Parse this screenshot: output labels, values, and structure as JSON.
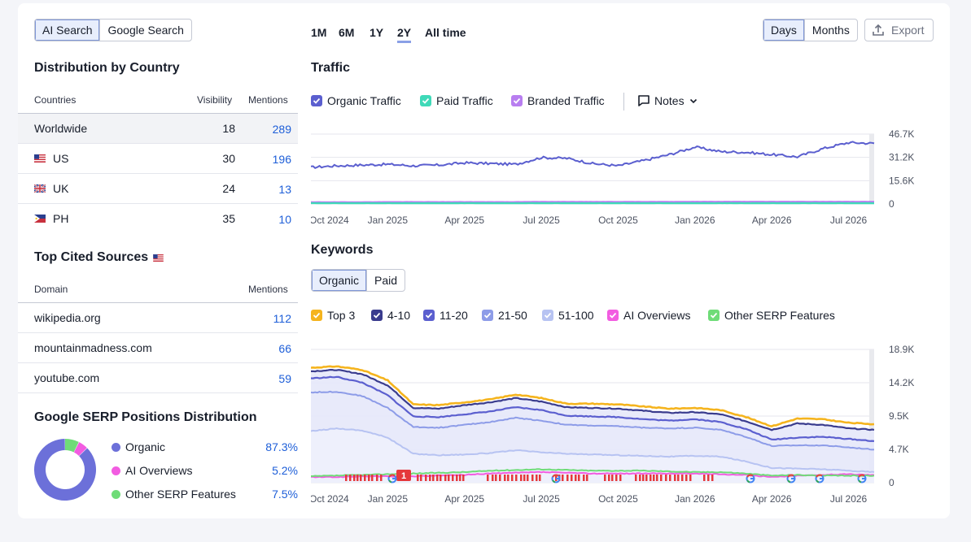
{
  "search_toggle": {
    "options": [
      "AI Search",
      "Google Search"
    ],
    "active": 0
  },
  "distribution": {
    "title": "Distribution by Country",
    "columns": [
      "Countries",
      "Visibility",
      "Mentions"
    ],
    "rows": [
      {
        "name": "Worldwide",
        "visibility": "18",
        "mentions": "289",
        "flag": ""
      },
      {
        "name": "US",
        "visibility": "30",
        "mentions": "196",
        "flag": "us-flag-icon"
      },
      {
        "name": "UK",
        "visibility": "24",
        "mentions": "13",
        "flag": "uk-flag-icon"
      },
      {
        "name": "PH",
        "visibility": "35",
        "mentions": "10",
        "flag": "ph-flag-icon"
      }
    ]
  },
  "cited": {
    "title": "Top Cited Sources",
    "columns": [
      "Domain",
      "Mentions"
    ],
    "rows": [
      {
        "domain": "wikipedia.org",
        "mentions": "112"
      },
      {
        "domain": "mountainmadness.com",
        "mentions": "66"
      },
      {
        "domain": "youtube.com",
        "mentions": "59"
      }
    ]
  },
  "serp": {
    "title": "Google SERP Positions Distribution",
    "items": [
      {
        "label": "Organic",
        "value": "87.3%",
        "share": 87.3,
        "color": "#6c70d9"
      },
      {
        "label": "AI Overviews",
        "value": "5.2%",
        "share": 5.2,
        "color": "#f25ce1"
      },
      {
        "label": "Other SERP Features",
        "value": "7.5%",
        "share": 7.5,
        "color": "#6fdc78"
      }
    ]
  },
  "ranges": {
    "options": [
      "1M",
      "6M",
      "1Y",
      "2Y",
      "All time"
    ],
    "active": 3
  },
  "granularity": {
    "options": [
      "Days",
      "Months"
    ],
    "active": 0
  },
  "export_label": "Export",
  "traffic": {
    "title": "Traffic",
    "legend": [
      {
        "label": "Organic Traffic",
        "color": "#5b5fcf"
      },
      {
        "label": "Paid Traffic",
        "color": "#3fd9b8"
      },
      {
        "label": "Branded Traffic",
        "color": "#b87ef0"
      }
    ],
    "notes_label": "Notes"
  },
  "keywords": {
    "title": "Keywords",
    "toggle": {
      "options": [
        "Organic",
        "Paid"
      ],
      "active": 0
    },
    "legend": [
      {
        "label": "Top 3",
        "color": "#f5b41e"
      },
      {
        "label": "4-10",
        "color": "#3a3c8e"
      },
      {
        "label": "11-20",
        "color": "#5b5fcf"
      },
      {
        "label": "21-50",
        "color": "#8d9ce8"
      },
      {
        "label": "51-100",
        "color": "#b7c3f2"
      },
      {
        "label": "AI Overviews",
        "color": "#f25ce1"
      },
      {
        "label": "Other SERP Features",
        "color": "#6fdc78"
      }
    ],
    "marker_badge": "1"
  },
  "chart_data": [
    {
      "type": "line",
      "title": "Traffic",
      "x": [
        "Oct 2024",
        "Nov 2024",
        "Dec 2024",
        "Jan 2025",
        "Feb 2025",
        "Mar 2025",
        "Apr 2025",
        "May 2025",
        "Jun 2025",
        "Jul 2025",
        "Aug 2025",
        "Sep 2025",
        "Oct 2025",
        "Nov 2025",
        "Dec 2025",
        "Jan 2026",
        "Feb 2026",
        "Mar 2026",
        "Apr 2026",
        "May 2026",
        "Jun 2026",
        "Jul 2026",
        "Aug 2026"
      ],
      "x_ticks": [
        "Oct 2024",
        "Jan 2025",
        "Apr 2025",
        "Jul 2025",
        "Oct 2025",
        "Jan 2026",
        "Apr 2026",
        "Jul 2026"
      ],
      "y_ticks": [
        "0",
        "15.6K",
        "31.2K",
        "46.7K"
      ],
      "ylim": [
        0,
        46700
      ],
      "series": [
        {
          "name": "Organic Traffic",
          "values": [
            24500,
            25500,
            26000,
            26500,
            25500,
            26000,
            27500,
            27000,
            26500,
            31000,
            30500,
            27000,
            25500,
            29000,
            33000,
            38000,
            35000,
            34500,
            33000,
            31500,
            37000,
            41000,
            40500
          ]
        },
        {
          "name": "Paid Traffic",
          "values": [
            500,
            500,
            500,
            500,
            500,
            500,
            500,
            500,
            500,
            500,
            500,
            500,
            500,
            500,
            500,
            500,
            500,
            500,
            500,
            500,
            500,
            500,
            500
          ]
        },
        {
          "name": "Branded Traffic",
          "values": [
            1200,
            1200,
            1200,
            1300,
            1300,
            1300,
            1300,
            1300,
            1300,
            1400,
            1400,
            1400,
            1400,
            1400,
            1400,
            1500,
            1500,
            1500,
            1500,
            1500,
            1500,
            1500,
            1500
          ]
        }
      ]
    },
    {
      "type": "area",
      "title": "Keywords",
      "x": [
        "Oct 2024",
        "Nov 2024",
        "Dec 2024",
        "Jan 2025",
        "Feb 2025",
        "Mar 2025",
        "Apr 2025",
        "May 2025",
        "Jun 2025",
        "Jul 2025",
        "Aug 2025",
        "Sep 2025",
        "Oct 2025",
        "Nov 2025",
        "Dec 2025",
        "Jan 2026",
        "Feb 2026",
        "Mar 2026",
        "Apr 2026",
        "May 2026",
        "Jun 2026",
        "Jul 2026",
        "Aug 2026"
      ],
      "x_ticks": [
        "Oct 2024",
        "Jan 2025",
        "Apr 2025",
        "Jul 2025",
        "Oct 2025",
        "Jan 2026",
        "Apr 2026",
        "Jul 2026"
      ],
      "y_ticks": [
        "0",
        "4.7K",
        "9.5K",
        "14.2K",
        "18.9K"
      ],
      "ylim": [
        0,
        18900
      ],
      "series": [
        {
          "name": "Top 3",
          "values": [
            16300,
            16500,
            16000,
            14500,
            11100,
            11000,
            11400,
            11800,
            12500,
            12000,
            11200,
            11200,
            11100,
            10800,
            10500,
            10600,
            10300,
            9300,
            8000,
            9100,
            9000,
            8500,
            8300
          ]
        },
        {
          "name": "4-10",
          "values": [
            15800,
            16000,
            15400,
            13800,
            10600,
            10500,
            11000,
            11400,
            12000,
            11500,
            10700,
            10600,
            10500,
            10200,
            9900,
            10000,
            9700,
            8700,
            7500,
            8400,
            8200,
            7700,
            7500
          ]
        },
        {
          "name": "11-20",
          "values": [
            14800,
            15000,
            14200,
            12400,
            9400,
            9300,
            9700,
            10100,
            10700,
            10300,
            9500,
            9400,
            9300,
            9000,
            8800,
            9000,
            8600,
            7600,
            6100,
            6400,
            6500,
            6200,
            5900
          ]
        },
        {
          "name": "21-50",
          "values": [
            12800,
            12900,
            12300,
            10600,
            7900,
            7800,
            8200,
            8600,
            9200,
            8800,
            8200,
            8100,
            8000,
            7800,
            7700,
            7800,
            7500,
            6500,
            5200,
            5300,
            5300,
            5000,
            4700
          ]
        },
        {
          "name": "51-100",
          "values": [
            7300,
            7700,
            7400,
            6400,
            4100,
            3900,
            4000,
            4200,
            4600,
            4300,
            4100,
            4000,
            3900,
            3800,
            3700,
            3800,
            3700,
            3000,
            2100,
            2000,
            1900,
            1700,
            1500
          ]
        },
        {
          "name": "AI Overviews",
          "values": [
            800,
            800,
            900,
            900,
            900,
            1000,
            1100,
            1300,
            1400,
            1500,
            1400,
            1300,
            1300,
            1300,
            1300,
            1300,
            1200,
            1100,
            800,
            1000,
            1100,
            1200,
            1100
          ]
        },
        {
          "name": "Other SERP Features",
          "values": [
            900,
            1000,
            1100,
            1200,
            1300,
            1400,
            1500,
            1700,
            1800,
            1900,
            1800,
            1700,
            1700,
            1700,
            1600,
            1500,
            1500,
            1300,
            1000,
            1100,
            1000,
            1000,
            1000
          ]
        }
      ]
    }
  ]
}
